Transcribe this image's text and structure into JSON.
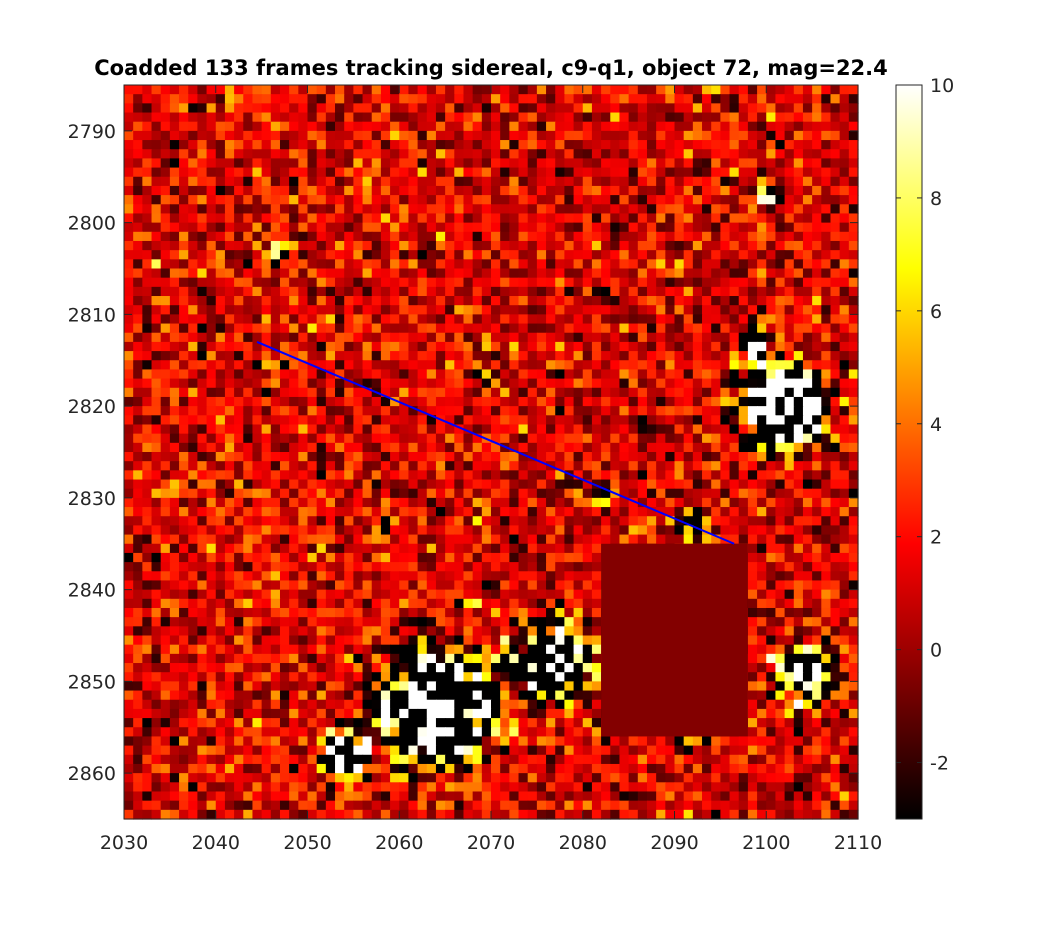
{
  "chart_data": {
    "type": "heatmap",
    "title": "Coadded 133 frames tracking sidereal, c9-q1, object 72, mag=22.4",
    "xlabel": "",
    "ylabel": "",
    "xlim": [
      2030,
      2110
    ],
    "ylim": [
      2785,
      2865
    ],
    "y_reversed": true,
    "x_ticks": [
      2030,
      2040,
      2050,
      2060,
      2070,
      2080,
      2090,
      2100,
      2110
    ],
    "y_ticks": [
      2790,
      2800,
      2810,
      2820,
      2830,
      2840,
      2850,
      2860
    ],
    "colormap": "hot",
    "clim": [
      -3,
      10
    ],
    "colorbar_ticks": [
      -2,
      0,
      2,
      4,
      6,
      8,
      10
    ],
    "masked_region": {
      "x": [
        2082,
        2098
      ],
      "y": [
        2835,
        2856
      ],
      "value": -0.5
    },
    "track_line": {
      "color": "#0000ff",
      "x": [
        2044.5,
        2096.5
      ],
      "y": [
        2813,
        2835
      ]
    },
    "sources": [
      {
        "x": 2102,
        "y": 2820,
        "amp": 22,
        "sigma": 3.0
      },
      {
        "x": 2064,
        "y": 2853,
        "amp": 20,
        "sigma": 4.0
      },
      {
        "x": 2054,
        "y": 2858,
        "amp": 15,
        "sigma": 1.8
      },
      {
        "x": 2077,
        "y": 2848,
        "amp": 14,
        "sigma": 3.0
      },
      {
        "x": 2104,
        "y": 2849,
        "amp": 13,
        "sigma": 2.2
      },
      {
        "x": 2092,
        "y": 2833,
        "amp": 9,
        "sigma": 1.2
      },
      {
        "x": 2099,
        "y": 2813,
        "amp": 12,
        "sigma": 1.2
      },
      {
        "x": 2100,
        "y": 2797,
        "amp": 8,
        "sigma": 1.2
      },
      {
        "x": 2047,
        "y": 2803,
        "amp": 7,
        "sigma": 1.2
      },
      {
        "x": 2069,
        "y": 2817,
        "amp": 7,
        "sigma": 1.0
      },
      {
        "x": 2058,
        "y": 2833,
        "amp": 6,
        "sigma": 1.0
      },
      {
        "x": 2082,
        "y": 2830,
        "amp": 7,
        "sigma": 1.0
      }
    ]
  }
}
